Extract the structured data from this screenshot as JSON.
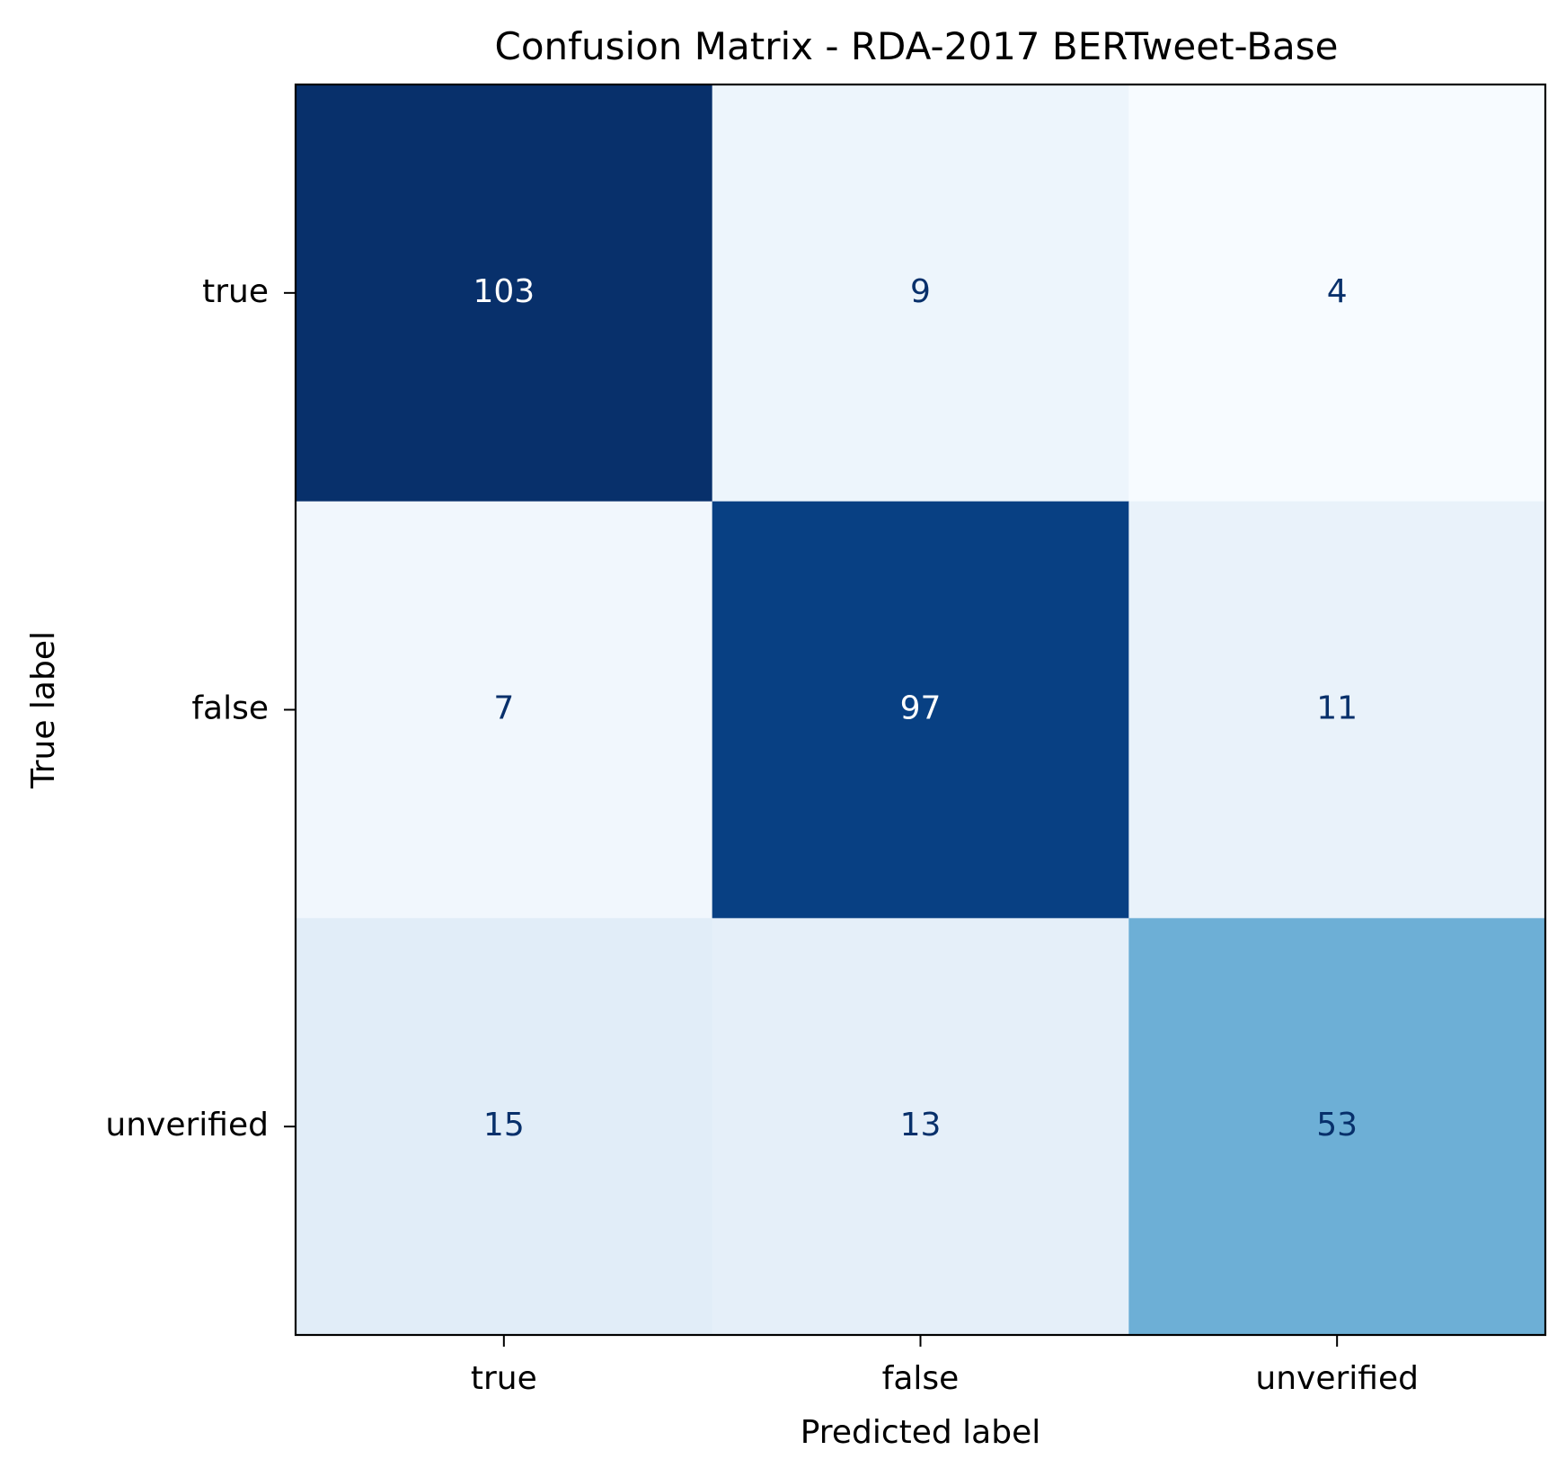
{
  "chart_data": {
    "type": "heatmap",
    "title": "Confusion Matrix - RDA-2017 BERTweet-Base",
    "xlabel": "Predicted label",
    "ylabel": "True label",
    "x_categories": [
      "true",
      "false",
      "unverified"
    ],
    "y_categories": [
      "true",
      "false",
      "unverified"
    ],
    "values": [
      [
        103,
        9,
        4
      ],
      [
        7,
        97,
        11
      ],
      [
        15,
        13,
        53
      ]
    ],
    "colormap": "Blues",
    "vmin": 4,
    "vmax": 103,
    "grid": false,
    "legend": "none",
    "colors": {
      "light_text": "#ffffff",
      "dark_text": "#08306b",
      "axis": "#000000",
      "tick_text": "#000000"
    }
  }
}
